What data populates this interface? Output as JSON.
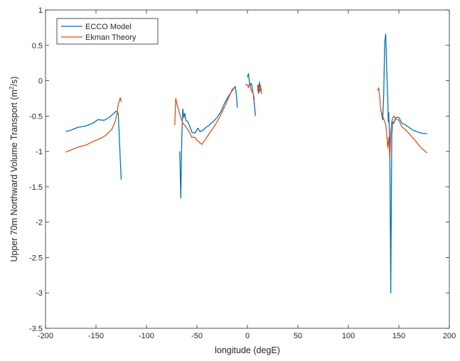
{
  "chart_data": {
    "type": "line",
    "xlabel": "longitude (degE)",
    "ylabel_prefix": "Upper 70m Northward Volume Transport (m",
    "ylabel_sup": "2",
    "ylabel_suffix": "/s)",
    "xlim": [
      -200,
      200
    ],
    "ylim": [
      -3.5,
      1
    ],
    "xticks": [
      -200,
      -150,
      -100,
      -50,
      0,
      50,
      100,
      150,
      200
    ],
    "yticks": [
      1,
      0.5,
      0,
      -0.5,
      -1,
      -1.5,
      -2,
      -2.5,
      -3,
      -3.5
    ],
    "xtick_labels": [
      "-200",
      "-150",
      "-100",
      "-50",
      "0",
      "50",
      "100",
      "150",
      "200"
    ],
    "ytick_labels": [
      "1",
      "0.5",
      "0",
      "-0.5",
      "-1",
      "-1.5",
      "-2",
      "-2.5",
      "-3",
      "-3.5"
    ],
    "grid": false,
    "legend_position": "top-left",
    "series": [
      {
        "name": "ECCO Model",
        "color": "#0072BD",
        "segments": [
          [
            [
              -180,
              -0.72
            ],
            [
              -175,
              -0.7
            ],
            [
              -168,
              -0.66
            ],
            [
              -160,
              -0.64
            ],
            [
              -153,
              -0.6
            ],
            [
              -148,
              -0.55
            ],
            [
              -142,
              -0.56
            ],
            [
              -137,
              -0.52
            ],
            [
              -133,
              -0.47
            ],
            [
              -130,
              -0.43
            ],
            [
              -128,
              -0.46
            ],
            [
              -127,
              -0.75
            ],
            [
              -126,
              -1.1
            ],
            [
              -125,
              -1.4
            ]
          ],
          [
            [
              -67,
              -1.0
            ],
            [
              -66,
              -1.66
            ],
            [
              -65,
              -0.8
            ],
            [
              -64,
              -0.4
            ],
            [
              -63,
              -0.52
            ],
            [
              -62,
              -0.46
            ],
            [
              -61,
              -0.56
            ],
            [
              -59,
              -0.58
            ],
            [
              -57,
              -0.65
            ],
            [
              -55,
              -0.73
            ],
            [
              -52,
              -0.74
            ],
            [
              -49,
              -0.67
            ],
            [
              -47,
              -0.72
            ],
            [
              -44,
              -0.7
            ],
            [
              -41,
              -0.66
            ],
            [
              -38,
              -0.63
            ],
            [
              -34,
              -0.58
            ],
            [
              -30,
              -0.52
            ],
            [
              -26,
              -0.43
            ],
            [
              -23,
              -0.33
            ],
            [
              -20,
              -0.25
            ],
            [
              -17,
              -0.18
            ],
            [
              -14,
              -0.12
            ],
            [
              -12,
              -0.08
            ],
            [
              -11,
              -0.2
            ],
            [
              -10,
              -0.38
            ]
          ],
          [
            [
              0,
              0.05
            ],
            [
              1,
              0.1
            ],
            [
              2,
              -0.02
            ],
            [
              3,
              -0.06
            ],
            [
              4,
              -0.04
            ],
            [
              5,
              -0.12
            ],
            [
              6,
              -0.22
            ],
            [
              7,
              -0.35
            ],
            [
              8,
              -0.5
            ]
          ],
          [
            [
              10,
              -0.06
            ],
            [
              11,
              -0.18
            ],
            [
              12,
              -0.02
            ],
            [
              13,
              -0.14
            ],
            [
              14,
              -0.12
            ]
          ],
          [
            [
              132,
              -0.4
            ],
            [
              134,
              -0.55
            ],
            [
              135,
              -0.2
            ],
            [
              136,
              0.55
            ],
            [
              137,
              0.66
            ],
            [
              138,
              0.15
            ],
            [
              139,
              -0.25
            ],
            [
              139.5,
              -0.58
            ],
            [
              140,
              -0.45
            ],
            [
              141,
              -0.9
            ],
            [
              142,
              -3.0
            ],
            [
              143,
              -0.75
            ],
            [
              144,
              -0.58
            ],
            [
              145,
              -0.6
            ],
            [
              147,
              -0.52
            ],
            [
              150,
              -0.52
            ],
            [
              153,
              -0.6
            ],
            [
              156,
              -0.62
            ],
            [
              160,
              -0.66
            ],
            [
              164,
              -0.7
            ],
            [
              168,
              -0.72
            ],
            [
              172,
              -0.74
            ],
            [
              178,
              -0.75
            ]
          ]
        ]
      },
      {
        "name": "Ekman Theory",
        "color": "#D95319",
        "segments": [
          [
            [
              -180,
              -1.01
            ],
            [
              -175,
              -0.98
            ],
            [
              -168,
              -0.94
            ],
            [
              -160,
              -0.91
            ],
            [
              -153,
              -0.86
            ],
            [
              -146,
              -0.82
            ],
            [
              -140,
              -0.77
            ],
            [
              -134,
              -0.68
            ],
            [
              -131,
              -0.58
            ],
            [
              -129,
              -0.45
            ],
            [
              -128,
              -0.34
            ],
            [
              -127,
              -0.3
            ],
            [
              -126,
              -0.24
            ],
            [
              -125,
              -0.3
            ]
          ],
          [
            [
              -72,
              -0.63
            ],
            [
              -71,
              -0.25
            ],
            [
              -70,
              -0.32
            ],
            [
              -68,
              -0.42
            ],
            [
              -66,
              -0.52
            ],
            [
              -64,
              -0.6
            ],
            [
              -61,
              -0.65
            ],
            [
              -58,
              -0.72
            ],
            [
              -55,
              -0.8
            ],
            [
              -52,
              -0.8
            ],
            [
              -50,
              -0.84
            ],
            [
              -47,
              -0.88
            ],
            [
              -45,
              -0.9
            ],
            [
              -42,
              -0.84
            ],
            [
              -38,
              -0.75
            ],
            [
              -34,
              -0.67
            ],
            [
              -30,
              -0.58
            ],
            [
              -26,
              -0.47
            ],
            [
              -22,
              -0.35
            ],
            [
              -18,
              -0.22
            ],
            [
              -15,
              -0.12
            ],
            [
              -12,
              -0.09
            ]
          ],
          [
            [
              -2,
              -0.05
            ],
            [
              0,
              -0.06
            ],
            [
              1,
              -0.1
            ],
            [
              2,
              -0.04
            ],
            [
              3,
              -0.1
            ],
            [
              4,
              -0.14
            ],
            [
              5,
              -0.16
            ],
            [
              6,
              -0.2
            ],
            [
              7,
              -0.27
            ]
          ],
          [
            [
              10,
              -0.14
            ],
            [
              11,
              -0.06
            ],
            [
              12,
              -0.16
            ],
            [
              13,
              -0.07
            ],
            [
              14,
              -0.19
            ]
          ],
          [
            [
              129,
              -0.14
            ],
            [
              130,
              -0.1
            ],
            [
              131,
              -0.22
            ],
            [
              132,
              -0.4
            ],
            [
              133,
              -0.46
            ],
            [
              134,
              -0.5
            ],
            [
              136,
              -0.58
            ],
            [
              137,
              -0.62
            ],
            [
              138,
              -0.75
            ],
            [
              139,
              -0.95
            ],
            [
              140,
              -0.8
            ],
            [
              141,
              -1.1
            ],
            [
              142,
              -0.72
            ],
            [
              143,
              -0.58
            ],
            [
              144,
              -0.52
            ],
            [
              145,
              -0.5
            ],
            [
              147,
              -0.54
            ],
            [
              150,
              -0.56
            ],
            [
              153,
              -0.65
            ],
            [
              157,
              -0.7
            ],
            [
              162,
              -0.78
            ],
            [
              167,
              -0.86
            ],
            [
              172,
              -0.95
            ],
            [
              178,
              -1.02
            ]
          ]
        ]
      }
    ]
  }
}
